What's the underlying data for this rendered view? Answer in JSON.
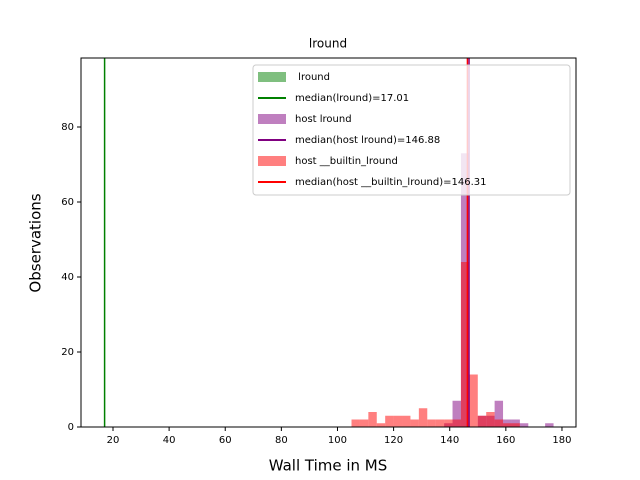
{
  "chart_data": {
    "type": "histogram",
    "title": "lround",
    "xlabel": "Wall Time in MS",
    "ylabel": "Observations",
    "xlim": [
      8.6,
      185
    ],
    "ylim": [
      0,
      98.4
    ],
    "xticks": [
      20,
      40,
      60,
      80,
      100,
      120,
      140,
      160,
      180
    ],
    "yticks": [
      0,
      20,
      40,
      60,
      80
    ],
    "legend": "upper right",
    "series": [
      {
        "name": " lround",
        "color": "green"
      },
      {
        "name": "host lround",
        "color": "purple",
        "bins": [
          138,
          141,
          144,
          147,
          150,
          153,
          156,
          159,
          162,
          165,
          168,
          171,
          174,
          177
        ],
        "counts": [
          1,
          7,
          73,
          0,
          3,
          3,
          7,
          2,
          2,
          1,
          0,
          0,
          1
        ]
      },
      {
        "name": "host __builtin_lround",
        "color": "red",
        "bins": [
          105,
          108,
          111,
          114,
          117,
          120,
          123,
          126,
          129,
          132,
          135,
          138,
          141,
          144,
          147,
          150,
          153,
          156,
          159,
          162,
          165
        ],
        "counts": [
          2,
          2,
          4,
          1,
          3,
          3,
          3,
          2,
          5,
          2,
          2,
          2,
          2,
          44,
          14,
          3,
          4,
          2,
          1,
          1
        ]
      }
    ],
    "medians": [
      {
        "name": "median(lround)=17.01",
        "color": "green",
        "value": 17.01
      },
      {
        "name": "median(host lround)=146.88",
        "color": "purple",
        "value": 146.88
      },
      {
        "name": "median(host __builtin_lround)=146.31",
        "color": "red",
        "value": 146.31
      }
    ]
  }
}
